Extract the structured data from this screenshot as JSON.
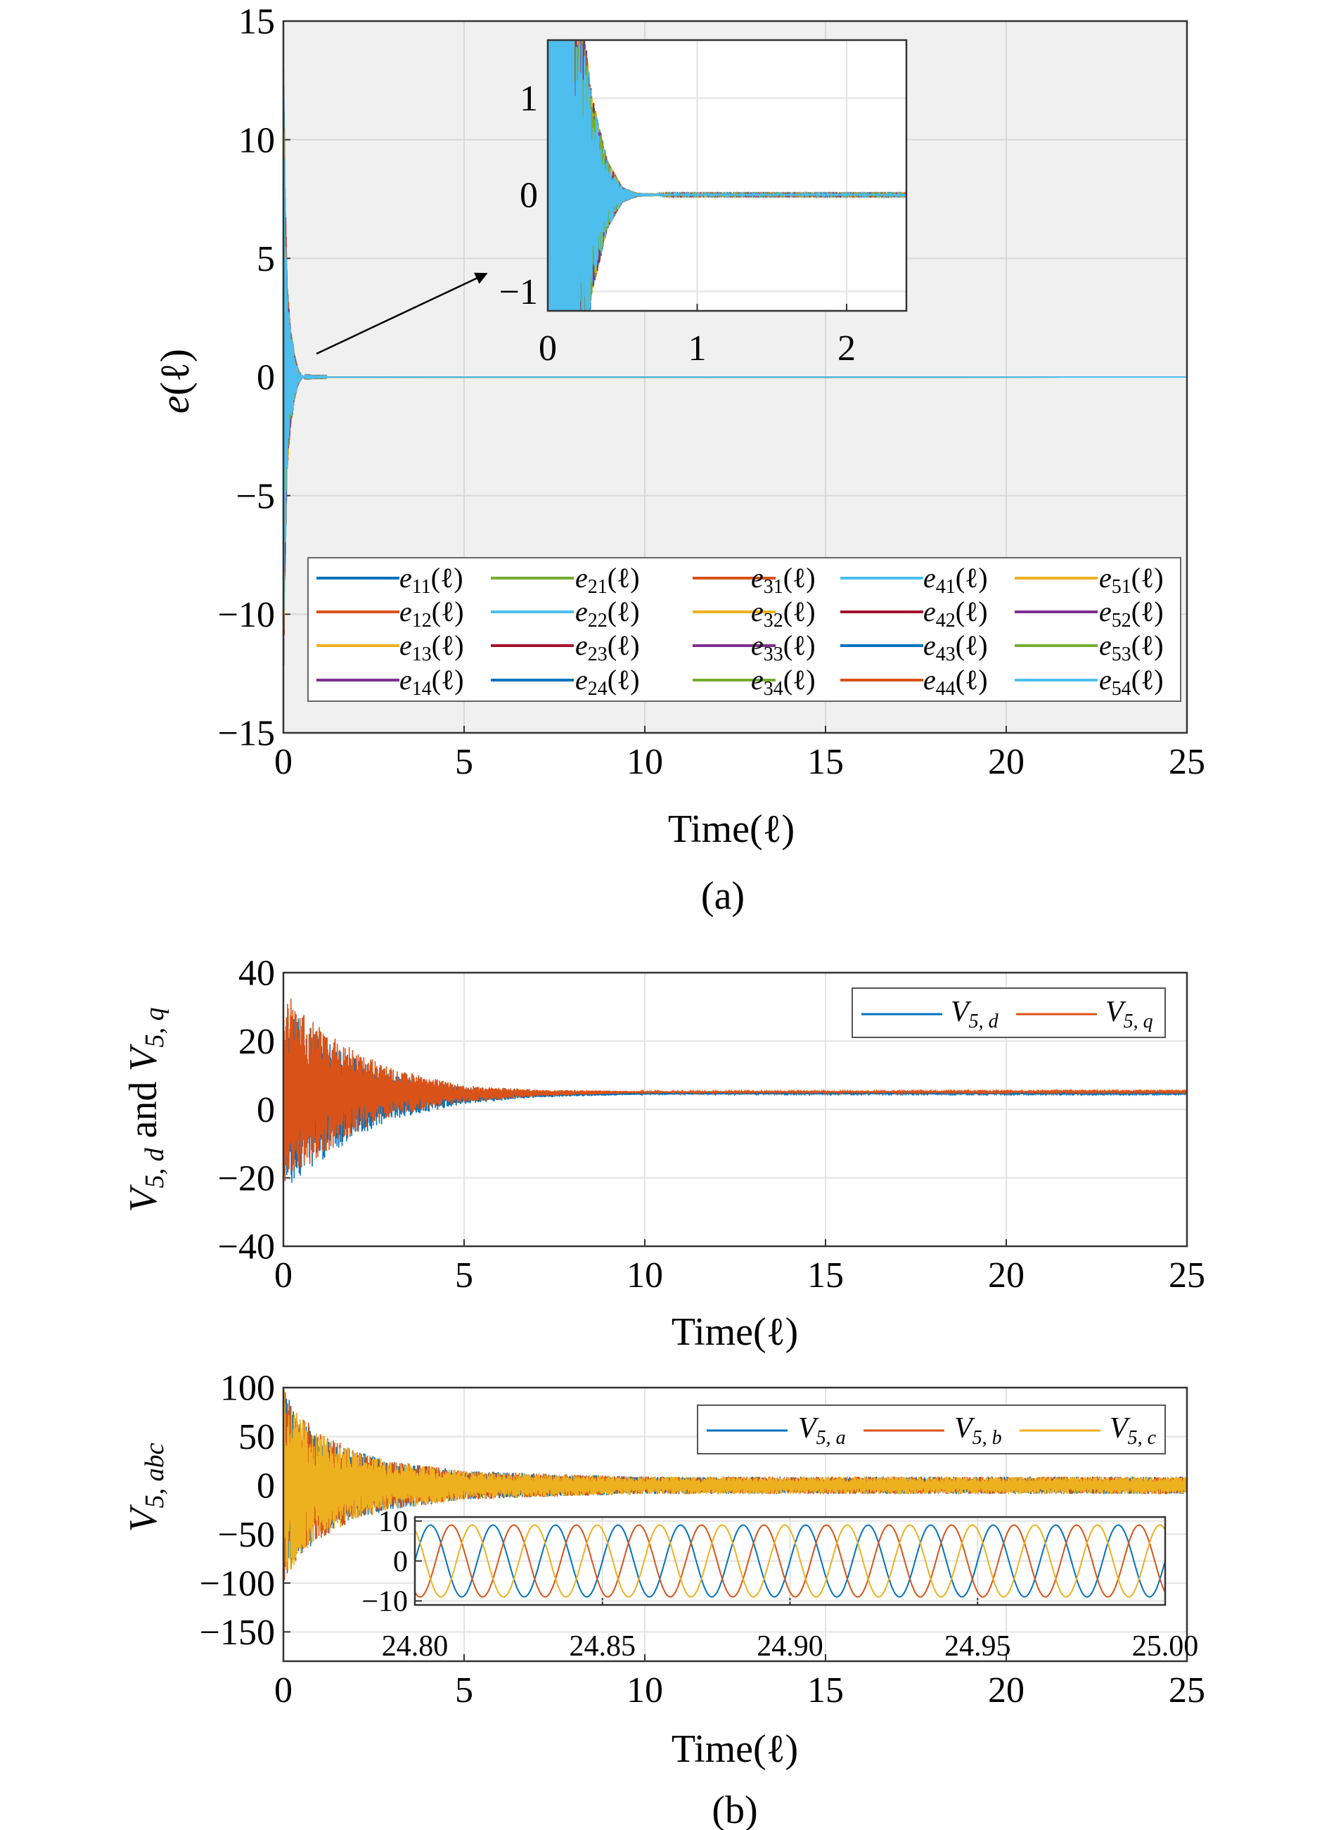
{
  "figure": {
    "caption_a": "(a)",
    "caption_b": "(b)"
  },
  "chart_data": [
    {
      "id": "a",
      "type": "line",
      "xlabel": "Time(ℓ)",
      "ylabel": {
        "base": "e",
        "arg": "(ℓ)"
      },
      "xlim": [
        0,
        25
      ],
      "ylim": [
        -15,
        15
      ],
      "xticks": [
        0,
        5,
        10,
        15,
        20,
        25
      ],
      "xticklabels": [
        "0",
        "5",
        "10",
        "15",
        "20",
        "25"
      ],
      "yticks": [
        -15,
        -10,
        -5,
        0,
        5,
        10,
        15
      ],
      "yticklabels": [
        "−15",
        "−10",
        "−5",
        "0",
        "5",
        "10",
        "15"
      ],
      "grid": true,
      "background": "#f0f0f0",
      "legend_placement": "bottom",
      "envelope": {
        "x": [
          0,
          0.05,
          0.1,
          0.2,
          0.25,
          0.3,
          0.4,
          0.5,
          0.6,
          0.8,
          25
        ],
        "upper": [
          13.8,
          8,
          4,
          2.0,
          1.6,
          1.0,
          0.35,
          0.08,
          0.02,
          0.01,
          0.01
        ],
        "lower": [
          -13,
          -8,
          -4,
          -2.0,
          -1.6,
          -1.0,
          -0.35,
          -0.08,
          -0.02,
          -0.01,
          -0.01
        ]
      },
      "series": [
        {
          "base": "e",
          "sub": "11",
          "arg": "(ℓ)",
          "color": "#0072bd"
        },
        {
          "base": "e",
          "sub": "12",
          "arg": "(ℓ)",
          "color": "#d95319"
        },
        {
          "base": "e",
          "sub": "13",
          "arg": "(ℓ)",
          "color": "#edb120"
        },
        {
          "base": "e",
          "sub": "14",
          "arg": "(ℓ)",
          "color": "#7e2f8e"
        },
        {
          "base": "e",
          "sub": "21",
          "arg": "(ℓ)",
          "color": "#77ac30"
        },
        {
          "base": "e",
          "sub": "22",
          "arg": "(ℓ)",
          "color": "#4dbeee"
        },
        {
          "base": "e",
          "sub": "23",
          "arg": "(ℓ)",
          "color": "#a2142f"
        },
        {
          "base": "e",
          "sub": "24",
          "arg": "(ℓ)",
          "color": "#0072bd"
        },
        {
          "base": "e",
          "sub": "31",
          "arg": "(ℓ)",
          "color": "#d95319"
        },
        {
          "base": "e",
          "sub": "32",
          "arg": "(ℓ)",
          "color": "#edb120"
        },
        {
          "base": "e",
          "sub": "33",
          "arg": "(ℓ)",
          "color": "#7e2f8e"
        },
        {
          "base": "e",
          "sub": "34",
          "arg": "(ℓ)",
          "color": "#77ac30"
        },
        {
          "base": "e",
          "sub": "41",
          "arg": "(ℓ)",
          "color": "#4dbeee"
        },
        {
          "base": "e",
          "sub": "42",
          "arg": "(ℓ)",
          "color": "#a2142f"
        },
        {
          "base": "e",
          "sub": "43",
          "arg": "(ℓ)",
          "color": "#0072bd"
        },
        {
          "base": "e",
          "sub": "44",
          "arg": "(ℓ)",
          "color": "#d95319"
        },
        {
          "base": "e",
          "sub": "51",
          "arg": "(ℓ)",
          "color": "#edb120"
        },
        {
          "base": "e",
          "sub": "52",
          "arg": "(ℓ)",
          "color": "#7e2f8e"
        },
        {
          "base": "e",
          "sub": "53",
          "arg": "(ℓ)",
          "color": "#77ac30"
        },
        {
          "base": "e",
          "sub": "54",
          "arg": "(ℓ)",
          "color": "#4dbeee"
        }
      ]
    },
    {
      "id": "a-inset",
      "type": "line",
      "xlim": [
        0,
        2.4
      ],
      "ylim": [
        -1.2,
        1.6
      ],
      "xticks": [
        0,
        1,
        2
      ],
      "xticklabels": [
        "0",
        "1",
        "2"
      ],
      "yticks": [
        -1,
        0,
        1
      ],
      "yticklabels": [
        "−1",
        "0",
        "1"
      ],
      "grid": true,
      "background": "#ffffff"
    },
    {
      "id": "b-dq",
      "type": "line",
      "xlabel": "Time(ℓ)",
      "ylabel": {
        "v1": "V",
        "s1": "5, d",
        "mid": " and ",
        "v2": "V",
        "s2": "5, q"
      },
      "xlim": [
        0,
        25
      ],
      "ylim": [
        -40,
        40
      ],
      "xticks": [
        0,
        5,
        10,
        15,
        20,
        25
      ],
      "xticklabels": [
        "0",
        "5",
        "10",
        "15",
        "20",
        "25"
      ],
      "yticks": [
        -40,
        -20,
        0,
        20,
        40
      ],
      "yticklabels": [
        "−40",
        "−20",
        "0",
        "20",
        "40"
      ],
      "grid": true,
      "background": "#ffffff",
      "legend_placement": "top-right",
      "series": [
        {
          "base": "V",
          "sub": "5, d",
          "color": "#0072bd",
          "envelope": {
            "x": [
              0,
              1,
              2,
              3,
              5,
              7,
              10,
              25
            ],
            "upper": [
              30,
              22,
              15,
              10,
              6.5,
              5.3,
              5.0,
              4.9
            ],
            "lower": [
              -24,
              -16,
              -8,
              -3,
              1.5,
              3.5,
              4.3,
              4.5
            ]
          }
        },
        {
          "base": "V",
          "sub": "5, q",
          "color": "#d95319",
          "envelope": {
            "x": [
              0,
              1,
              2,
              3,
              5,
              7,
              10,
              25
            ],
            "upper": [
              36,
              25,
              17,
              12,
              7,
              5.8,
              5.4,
              5.4
            ],
            "lower": [
              -22,
              -14,
              -7,
              -2,
              2,
              3.8,
              4.8,
              5.0
            ]
          }
        }
      ]
    },
    {
      "id": "b-abc",
      "type": "line",
      "xlabel": "Time(ℓ)",
      "ylabel": {
        "base": "V",
        "sub": "5, abc"
      },
      "xlim": [
        0,
        25
      ],
      "ylim": [
        -180,
        100
      ],
      "xticks": [
        0,
        5,
        10,
        15,
        20,
        25
      ],
      "xticklabels": [
        "0",
        "5",
        "10",
        "15",
        "20",
        "25"
      ],
      "yticks": [
        -150,
        -100,
        -50,
        0,
        50,
        100
      ],
      "yticklabels": [
        "−150",
        "−100",
        "−50",
        "0",
        "50",
        "100"
      ],
      "grid": true,
      "background": "#ffffff",
      "legend_placement": "top-right",
      "envelope": {
        "x": [
          0,
          0.5,
          1,
          2,
          3,
          5,
          8,
          10,
          25
        ],
        "upper": [
          100,
          70,
          55,
          35,
          25,
          15,
          11,
          9,
          9
        ]
      },
      "series": [
        {
          "base": "V",
          "sub": "5, a",
          "color": "#0072bd"
        },
        {
          "base": "V",
          "sub": "5, b",
          "color": "#d95319"
        },
        {
          "base": "V",
          "sub": "5, c",
          "color": "#edb120"
        }
      ]
    },
    {
      "id": "b-abc-inset",
      "type": "line",
      "xlim": [
        24.8,
        25.0
      ],
      "ylim": [
        -11,
        11
      ],
      "xticks": [
        24.8,
        24.85,
        24.9,
        24.95,
        25.0
      ],
      "xticklabels": [
        "24.80",
        "24.85",
        "24.90",
        "24.95",
        "25.00"
      ],
      "yticks": [
        -10,
        0,
        10
      ],
      "yticklabels": [
        "−10",
        "0",
        "10"
      ],
      "grid": true,
      "background": "#ffffff",
      "sinusoid": {
        "amplitude": 9,
        "frequency_hz": 60,
        "phases_deg": [
          0,
          -120,
          120
        ]
      }
    }
  ]
}
